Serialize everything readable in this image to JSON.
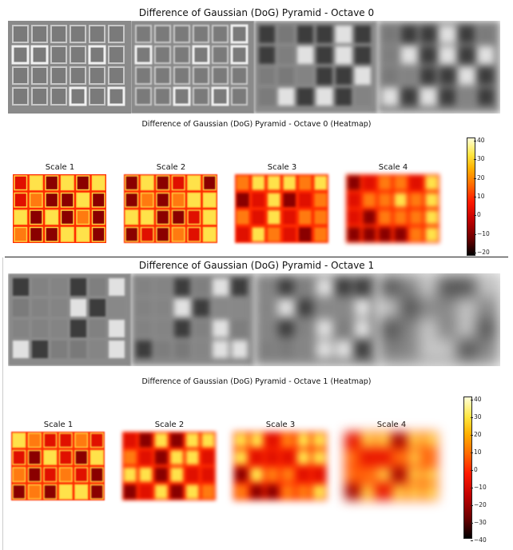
{
  "octaves": [
    {
      "title": "Difference of Gaussian (DoG) Pyramid - Octave 0",
      "heatmap_title": "Difference of Gaussian (DoG) Pyramid - Octave 0 (Heatmap)",
      "scales": [
        "Scale 1",
        "Scale 2",
        "Scale 3",
        "Scale 4"
      ],
      "colorbar_ticks": [
        "40",
        "30",
        "20",
        "10",
        "0",
        "−10",
        "−20"
      ]
    },
    {
      "title": "Difference of Gaussian (DoG) Pyramid - Octave 1",
      "heatmap_title": "Difference of Gaussian (DoG) Pyramid - Octave 1 (Heatmap)",
      "scales": [
        "Scale 1",
        "Scale 2",
        "Scale 3",
        "Scale 4"
      ],
      "colorbar_ticks": [
        "40",
        "30",
        "20",
        "10",
        "0",
        "−10",
        "−20",
        "−30",
        "−40"
      ]
    }
  ],
  "colors": {
    "gray_base": "#8c8c8c",
    "heat_base": "#ff2a00",
    "heat_bright": "#ffe24a",
    "heat_dark": "#8a0000"
  }
}
